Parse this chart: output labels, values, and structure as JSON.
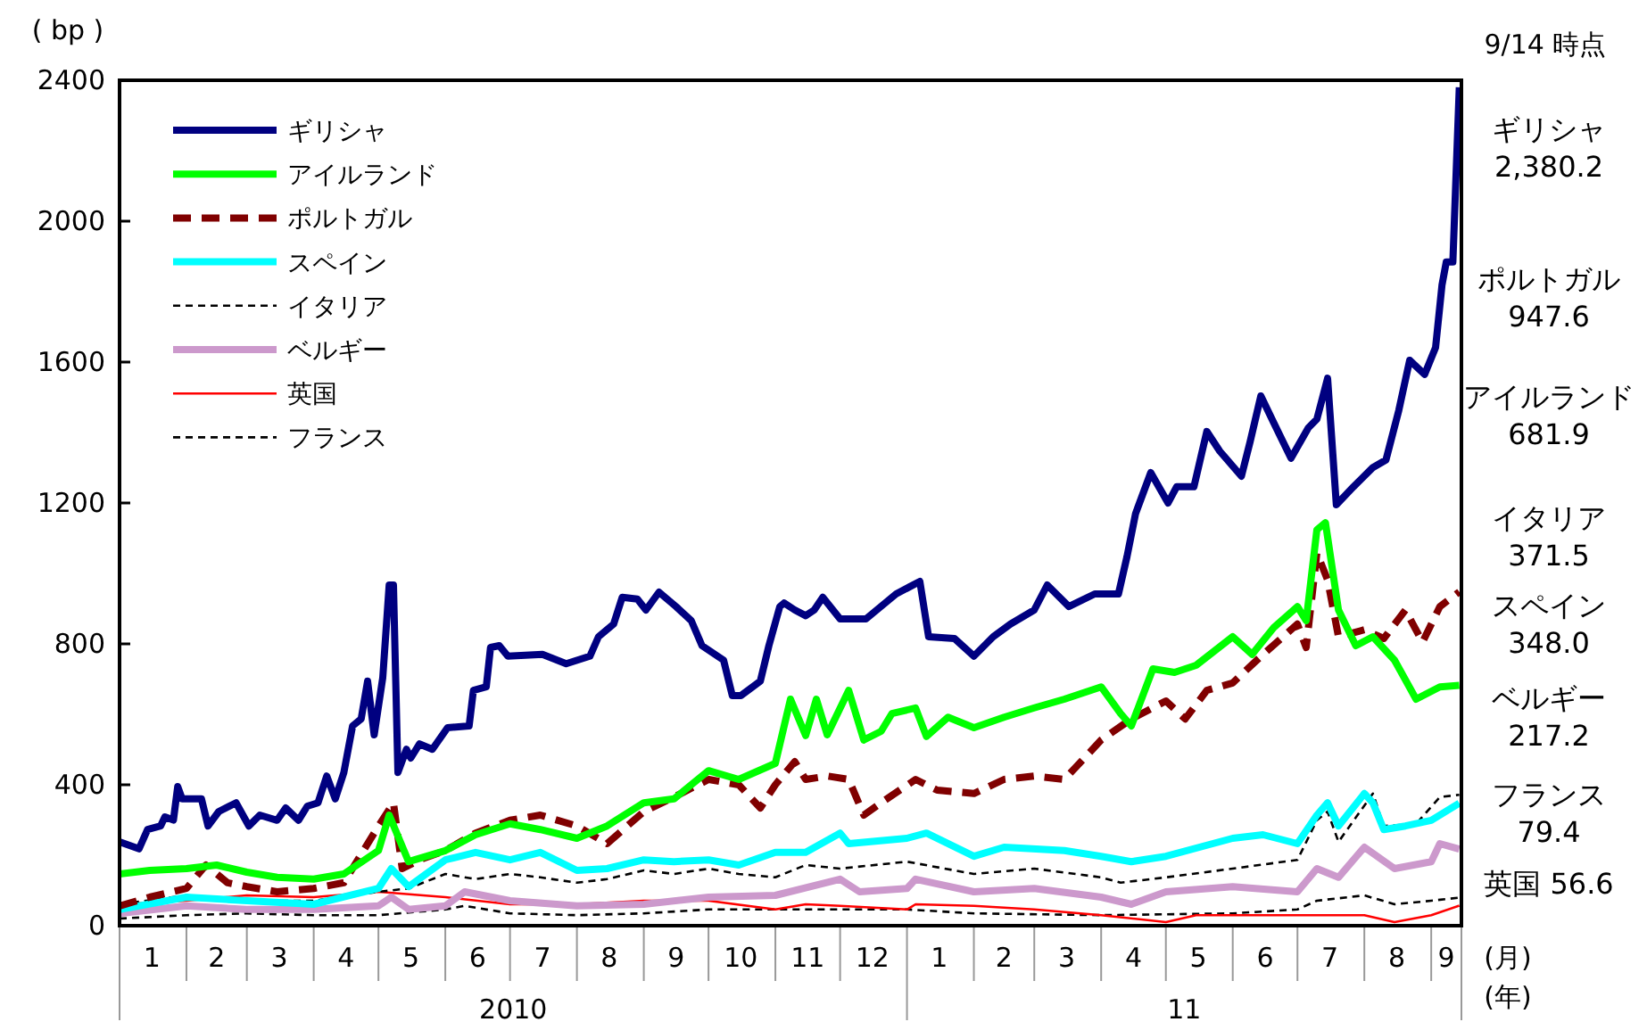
{
  "chart_data": {
    "type": "line",
    "ylabel": "( bp )",
    "xlim": [
      "2010-01-01",
      "2011-09-15"
    ],
    "xticks": [
      {
        "value": "2010-01-16",
        "label": "1"
      },
      {
        "value": "2010-02-15",
        "label": "2"
      },
      {
        "value": "2010-03-16",
        "label": "3"
      },
      {
        "value": "2010-04-16",
        "label": "4"
      },
      {
        "value": "2010-05-16",
        "label": "5"
      },
      {
        "value": "2010-06-16",
        "label": "6"
      },
      {
        "value": "2010-07-16",
        "label": "7"
      },
      {
        "value": "2010-08-16",
        "label": "8"
      },
      {
        "value": "2010-09-16",
        "label": "9"
      },
      {
        "value": "2010-10-16",
        "label": "10"
      },
      {
        "value": "2010-11-16",
        "label": "11"
      },
      {
        "value": "2010-12-16",
        "label": "12"
      },
      {
        "value": "2011-01-16",
        "label": "1"
      },
      {
        "value": "2011-02-15",
        "label": "2"
      },
      {
        "value": "2011-03-16",
        "label": "3"
      },
      {
        "value": "2011-04-16",
        "label": "4"
      },
      {
        "value": "2011-05-16",
        "label": "5"
      },
      {
        "value": "2011-06-16",
        "label": "6"
      },
      {
        "value": "2011-07-16",
        "label": "7"
      },
      {
        "value": "2011-08-16",
        "label": "8"
      },
      {
        "value": "2011-09-08",
        "label": "9"
      }
    ],
    "ylim": [
      0,
      2400
    ],
    "yticks": [
      0,
      400,
      800,
      1200,
      1600,
      2000,
      2400
    ],
    "grid": false,
    "legend": "top left",
    "marker": "none",
    "annotations": [
      "9/14  時点",
      "2010",
      "11",
      "(月)",
      "(年)",
      "ギリシャ\n2,380.2",
      "ポルトガル\n947.6",
      "アイルランド\n681.9",
      "イタリア\n371.5",
      "スペイン\n348.0",
      "ベルギー\n217.2",
      "フランス\n79.4",
      "英国  56.6"
    ],
    "series": [
      {
        "name": "ギリシャ",
        "color": "#000080",
        "line_style": "solid",
        "x": [
          "2010-01-01",
          "2010-01-10",
          "2010-01-14",
          "2010-01-20",
          "2010-01-22",
          "2010-01-26",
          "2010-01-28",
          "2010-01-30",
          "2010-02-08",
          "2010-02-11",
          "2010-02-16",
          "2010-02-24",
          "2010-03-02",
          "2010-03-07",
          "2010-03-15",
          "2010-03-19",
          "2010-03-25",
          "2010-03-29",
          "2010-04-03",
          "2010-04-07",
          "2010-04-11",
          "2010-04-15",
          "2010-04-19",
          "2010-04-23",
          "2010-04-26",
          "2010-04-29",
          "2010-05-03",
          "2010-05-06",
          "2010-05-08",
          "2010-05-10",
          "2010-05-14",
          "2010-05-16",
          "2010-05-20",
          "2010-05-26",
          "2010-06-02",
          "2010-06-12",
          "2010-06-14",
          "2010-06-20",
          "2010-06-22",
          "2010-06-26",
          "2010-06-30",
          "2010-07-16",
          "2010-07-27",
          "2010-08-07",
          "2010-08-11",
          "2010-08-18",
          "2010-08-22",
          "2010-08-29",
          "2010-09-02",
          "2010-09-08",
          "2010-09-16",
          "2010-09-23",
          "2010-09-28",
          "2010-10-08",
          "2010-10-12",
          "2010-10-16",
          "2010-10-25",
          "2010-10-29",
          "2010-11-03",
          "2010-11-05",
          "2010-11-10",
          "2010-11-15",
          "2010-11-19",
          "2010-11-23",
          "2010-12-01",
          "2010-12-13",
          "2010-12-27",
          "2011-01-07",
          "2011-01-11",
          "2011-01-23",
          "2011-02-01",
          "2011-02-10",
          "2011-02-18",
          "2011-03-01",
          "2011-03-07",
          "2011-03-17",
          "2011-03-29",
          "2011-04-09",
          "2011-04-13",
          "2011-04-17",
          "2011-04-24",
          "2011-05-02",
          "2011-05-06",
          "2011-05-14",
          "2011-05-20",
          "2011-05-26",
          "2011-06-05",
          "2011-06-09",
          "2011-06-14",
          "2011-06-20",
          "2011-06-28",
          "2011-07-06",
          "2011-07-10",
          "2011-07-15",
          "2011-07-19",
          "2011-07-27",
          "2011-08-05",
          "2011-08-11",
          "2011-08-17",
          "2011-08-22",
          "2011-08-29",
          "2011-09-03",
          "2011-09-06",
          "2011-09-08",
          "2011-09-11",
          "2011-09-14"
        ],
        "values": [
          238,
          218,
          273,
          283,
          309,
          300,
          395,
          360,
          360,
          283,
          324,
          349,
          283,
          314,
          299,
          334,
          299,
          339,
          349,
          425,
          360,
          435,
          567,
          587,
          694,
          542,
          704,
          967,
          967,
          435,
          501,
          476,
          516,
          501,
          562,
          567,
          668,
          678,
          790,
          795,
          765,
          770,
          744,
          765,
          820,
          856,
          932,
          927,
          896,
          947,
          906,
          866,
          795,
          754,
          653,
          653,
          694,
          795,
          906,
          916,
          896,
          880,
          896,
          932,
          871,
          871,
          942,
          977,
          820,
          815,
          765,
          820,
          856,
          896,
          967,
          906,
          942,
          942,
          1048,
          1170,
          1286,
          1200,
          1246,
          1246,
          1403,
          1347,
          1276,
          1372,
          1504,
          1428,
          1327,
          1413,
          1438,
          1554,
          1195,
          1246,
          1301,
          1322,
          1463,
          1605,
          1565,
          1641,
          1818,
          1884,
          1884,
          2380.2
        ]
      },
      {
        "name": "アイルランド",
        "color": "#00ff00",
        "line_style": "solid",
        "x": [
          "2010-01-01",
          "2010-01-15",
          "2010-02-01",
          "2010-02-15",
          "2010-03-01",
          "2010-03-15",
          "2010-04-01",
          "2010-04-15",
          "2010-05-01",
          "2010-05-06",
          "2010-05-15",
          "2010-06-01",
          "2010-06-15",
          "2010-07-01",
          "2010-07-15",
          "2010-08-01",
          "2010-08-15",
          "2010-09-01",
          "2010-09-15",
          "2010-10-01",
          "2010-10-15",
          "2010-11-01",
          "2010-11-08",
          "2010-11-15",
          "2010-11-20",
          "2010-11-25",
          "2010-12-05",
          "2010-12-12",
          "2010-12-20",
          "2010-12-25",
          "2011-01-05",
          "2011-01-10",
          "2011-01-20",
          "2011-02-01",
          "2011-02-15",
          "2011-03-01",
          "2011-03-15",
          "2011-04-01",
          "2011-04-10",
          "2011-04-15",
          "2011-04-25",
          "2011-05-05",
          "2011-05-15",
          "2011-06-01",
          "2011-06-10",
          "2011-06-20",
          "2011-07-01",
          "2011-07-05",
          "2011-07-10",
          "2011-07-14",
          "2011-07-20",
          "2011-07-28",
          "2011-08-05",
          "2011-08-15",
          "2011-08-25",
          "2011-09-05",
          "2011-09-14"
        ],
        "values": [
          147,
          157,
          162,
          172,
          152,
          137,
          132,
          147,
          213,
          314,
          182,
          213,
          258,
          289,
          273,
          248,
          283,
          349,
          360,
          440,
          415,
          461,
          643,
          540,
          643,
          542,
          668,
          527,
          552,
          602,
          618,
          537,
          592,
          562,
          592,
          618,
          643,
          678,
          602,
          567,
          729,
          719,
          739,
          820,
          770,
          846,
          906,
          866,
          1124,
          1144,
          896,
          795,
          820,
          754,
          643,
          678,
          681.9
        ]
      },
      {
        "name": "ポルトガル",
        "color": "#800000",
        "line_style": "dashed",
        "x": [
          "2010-01-01",
          "2010-01-15",
          "2010-02-01",
          "2010-02-10",
          "2010-02-20",
          "2010-03-01",
          "2010-03-15",
          "2010-04-01",
          "2010-04-15",
          "2010-05-01",
          "2010-05-08",
          "2010-05-12",
          "2010-05-20",
          "2010-06-01",
          "2010-06-15",
          "2010-07-01",
          "2010-07-15",
          "2010-08-01",
          "2010-08-15",
          "2010-09-01",
          "2010-09-15",
          "2010-10-01",
          "2010-10-15",
          "2010-10-25",
          "2010-11-01",
          "2010-11-10",
          "2010-11-15",
          "2010-11-25",
          "2010-12-05",
          "2010-12-12",
          "2010-12-20",
          "2011-01-05",
          "2011-01-15",
          "2011-02-01",
          "2011-02-15",
          "2011-03-01",
          "2011-03-15",
          "2011-04-01",
          "2011-04-15",
          "2011-05-01",
          "2011-05-10",
          "2011-05-20",
          "2011-06-01",
          "2011-06-15",
          "2011-07-01",
          "2011-07-05",
          "2011-07-10",
          "2011-07-15",
          "2011-07-20",
          "2011-08-01",
          "2011-08-10",
          "2011-08-20",
          "2011-08-28",
          "2011-09-05",
          "2011-09-14"
        ],
        "values": [
          56,
          81,
          106,
          172,
          122,
          111,
          96,
          106,
          122,
          283,
          349,
          162,
          187,
          213,
          263,
          299,
          314,
          283,
          233,
          324,
          365,
          415,
          400,
          334,
          400,
          466,
          415,
          425,
          415,
          314,
          349,
          415,
          385,
          375,
          415,
          425,
          415,
          527,
          587,
          638,
          587,
          668,
          689,
          770,
          856,
          790,
          1058,
          982,
          820,
          840,
          815,
          896,
          805,
          906,
          947.6
        ]
      },
      {
        "name": "スペイン",
        "color": "#00ffff",
        "line_style": "solid",
        "x": [
          "2010-01-01",
          "2010-02-01",
          "2010-03-01",
          "2010-04-01",
          "2010-05-01",
          "2010-05-07",
          "2010-05-15",
          "2010-06-01",
          "2010-06-15",
          "2010-07-01",
          "2010-07-15",
          "2010-08-01",
          "2010-08-15",
          "2010-09-01",
          "2010-09-15",
          "2010-10-01",
          "2010-10-15",
          "2010-11-01",
          "2010-11-15",
          "2010-12-01",
          "2010-12-05",
          "2011-01-01",
          "2011-01-10",
          "2011-02-01",
          "2011-02-15",
          "2011-03-15",
          "2011-04-01",
          "2011-04-15",
          "2011-05-01",
          "2011-06-01",
          "2011-06-15",
          "2011-07-01",
          "2011-07-10",
          "2011-07-15",
          "2011-07-20",
          "2011-08-01",
          "2011-08-05",
          "2011-08-10",
          "2011-08-20",
          "2011-09-01",
          "2011-09-14"
        ],
        "values": [
          46,
          81,
          71,
          61,
          106,
          162,
          111,
          187,
          208,
          187,
          208,
          157,
          162,
          187,
          182,
          187,
          172,
          208,
          208,
          263,
          233,
          248,
          263,
          197,
          223,
          213,
          197,
          182,
          197,
          248,
          258,
          233,
          314,
          349,
          283,
          375,
          349,
          273,
          283,
          299,
          348.0
        ]
      },
      {
        "name": "イタリア",
        "color": "#000000",
        "line_style": "dashed",
        "x": [
          "2010-01-01",
          "2010-02-01",
          "2010-03-01",
          "2010-04-01",
          "2010-05-01",
          "2010-05-15",
          "2010-06-01",
          "2010-06-15",
          "2010-07-01",
          "2010-07-15",
          "2010-08-01",
          "2010-08-15",
          "2010-09-01",
          "2010-09-15",
          "2010-10-01",
          "2010-10-15",
          "2010-11-01",
          "2010-11-15",
          "2010-12-01",
          "2011-01-01",
          "2011-02-01",
          "2011-03-01",
          "2011-04-01",
          "2011-04-10",
          "2011-05-01",
          "2011-06-01",
          "2011-07-01",
          "2011-07-10",
          "2011-07-15",
          "2011-07-20",
          "2011-08-05",
          "2011-08-10",
          "2011-08-25",
          "2011-09-05",
          "2011-09-14"
        ],
        "values": [
          61,
          86,
          71,
          71,
          96,
          106,
          147,
          132,
          147,
          137,
          122,
          132,
          157,
          147,
          162,
          147,
          137,
          172,
          162,
          182,
          147,
          162,
          137,
          122,
          137,
          162,
          187,
          299,
          324,
          238,
          375,
          283,
          289,
          365,
          371.5
        ]
      },
      {
        "name": "ベルギー",
        "color": "#cc99cc",
        "line_style": "solid",
        "x": [
          "2010-01-01",
          "2010-02-01",
          "2010-03-01",
          "2010-04-01",
          "2010-05-01",
          "2010-05-07",
          "2010-05-15",
          "2010-06-01",
          "2010-06-10",
          "2010-07-01",
          "2010-08-01",
          "2010-09-01",
          "2010-10-01",
          "2010-11-01",
          "2010-12-01",
          "2010-12-10",
          "2011-01-01",
          "2011-01-05",
          "2011-02-01",
          "2011-03-01",
          "2011-04-01",
          "2011-04-15",
          "2011-05-01",
          "2011-06-01",
          "2011-07-01",
          "2011-07-10",
          "2011-07-20",
          "2011-08-01",
          "2011-08-15",
          "2011-09-01",
          "2011-09-05",
          "2011-09-14"
        ],
        "values": [
          35,
          56,
          46,
          46,
          56,
          81,
          46,
          56,
          96,
          71,
          56,
          61,
          81,
          86,
          132,
          96,
          106,
          132,
          96,
          106,
          81,
          61,
          96,
          111,
          96,
          162,
          137,
          223,
          162,
          182,
          233,
          217.2
        ]
      },
      {
        "name": "英国",
        "color": "#ff0000",
        "line_style": "solid",
        "x": [
          "2010-01-01",
          "2010-02-01",
          "2010-03-01",
          "2010-04-01",
          "2010-05-01",
          "2010-06-01",
          "2010-07-01",
          "2010-08-01",
          "2010-09-01",
          "2010-10-01",
          "2010-11-01",
          "2010-11-15",
          "2010-12-01",
          "2011-01-01",
          "2011-01-05",
          "2011-02-01",
          "2011-03-01",
          "2011-04-01",
          "2011-05-01",
          "2011-05-15",
          "2011-06-01",
          "2011-07-01",
          "2011-08-01",
          "2011-08-15",
          "2011-09-01",
          "2011-09-14"
        ],
        "values": [
          61,
          71,
          86,
          81,
          96,
          81,
          61,
          61,
          71,
          71,
          46,
          61,
          56,
          46,
          61,
          56,
          46,
          30,
          10,
          30,
          30,
          30,
          30,
          10,
          30,
          56.6
        ]
      },
      {
        "name": "フランス",
        "color": "#000000",
        "line_style": "dashed",
        "x": [
          "2010-01-01",
          "2010-02-01",
          "2010-03-01",
          "2010-04-01",
          "2010-05-01",
          "2010-06-01",
          "2010-06-10",
          "2010-07-01",
          "2010-08-01",
          "2010-09-01",
          "2010-10-01",
          "2010-11-01",
          "2010-12-01",
          "2011-01-01",
          "2011-02-01",
          "2011-04-01",
          "2011-06-01",
          "2011-07-01",
          "2011-07-10",
          "2011-08-01",
          "2011-08-15",
          "2011-09-01",
          "2011-09-14"
        ],
        "values": [
          20,
          30,
          35,
          30,
          30,
          46,
          56,
          35,
          30,
          35,
          46,
          46,
          46,
          46,
          35,
          30,
          35,
          46,
          71,
          86,
          61,
          71,
          79.4
        ]
      }
    ]
  }
}
